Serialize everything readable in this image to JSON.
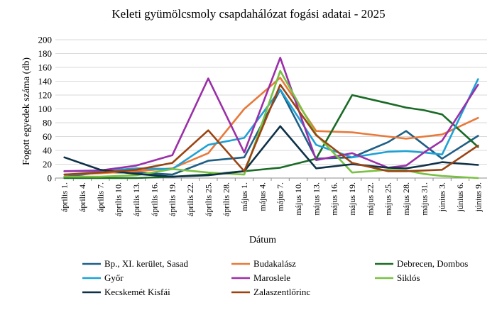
{
  "chart_data": {
    "type": "line",
    "title": "Keleti gyümölcsmoly csapdahálózat fogási adatai - 2025",
    "xlabel": "Dátum",
    "ylabel": "Fogott egyedek száma (db)",
    "ylim": [
      0,
      200
    ],
    "yticks": [
      0,
      20,
      40,
      60,
      80,
      100,
      120,
      140,
      160,
      180,
      200
    ],
    "grid": "horizontal",
    "legend_position": "bottom",
    "categories": [
      "április 1.",
      "április 4.",
      "április 7.",
      "április 10.",
      "április 13.",
      "április 16.",
      "április 19.",
      "április 22.",
      "április 25.",
      "április 28.",
      "május 1.",
      "május 4.",
      "május 7.",
      "május 10.",
      "május 13.",
      "május 16.",
      "május 19.",
      "május 22.",
      "május 25.",
      "május 28.",
      "május 31.",
      "június 3.",
      "június 6.",
      "június 9."
    ],
    "series": [
      {
        "name": "Bp., XI. kerület, Sasad",
        "color": "#1f5f85",
        "x": [
          0,
          2,
          4,
          6,
          8,
          10,
          12,
          14,
          16,
          18,
          19,
          20,
          21,
          23
        ],
        "values": [
          2,
          8,
          8,
          5,
          25,
          30,
          128,
          28,
          30,
          52,
          68,
          48,
          28,
          61
        ]
      },
      {
        "name": "Budakalász",
        "color": "#e8793a",
        "x": [
          0,
          2,
          4,
          6,
          8,
          10,
          12,
          14,
          16,
          18,
          19,
          20,
          21,
          23
        ],
        "values": [
          5,
          7,
          10,
          14,
          36,
          100,
          145,
          68,
          66,
          60,
          57,
          60,
          63,
          87
        ]
      },
      {
        "name": "Debrecen, Dombos",
        "color": "#1a6b26",
        "x": [
          0,
          2,
          4,
          6,
          8,
          10,
          12,
          14,
          16,
          18,
          19,
          20,
          21,
          23
        ],
        "values": [
          0,
          0,
          0,
          2,
          5,
          10,
          15,
          28,
          120,
          108,
          102,
          98,
          92,
          45
        ]
      },
      {
        "name": "Győr",
        "color": "#1da1d6",
        "x": [
          0,
          2,
          4,
          6,
          8,
          10,
          12,
          14,
          16,
          18,
          19,
          20,
          21,
          23
        ],
        "values": [
          10,
          10,
          14,
          13,
          48,
          58,
          128,
          48,
          30,
          38,
          39,
          37,
          34,
          143
        ]
      },
      {
        "name": "Maroslele",
        "color": "#9b2fa8",
        "x": [
          0,
          2,
          4,
          6,
          8,
          10,
          12,
          14,
          16,
          18,
          19,
          20,
          21,
          23
        ],
        "values": [
          10,
          11,
          18,
          33,
          144,
          37,
          174,
          26,
          36,
          15,
          18,
          37,
          54,
          135
        ]
      },
      {
        "name": "Siklós",
        "color": "#7ac143",
        "x": [
          0,
          2,
          4,
          6,
          8,
          10,
          12,
          14,
          16,
          18,
          19,
          20,
          21,
          23
        ],
        "values": [
          2,
          2,
          4,
          13,
          8,
          5,
          155,
          63,
          8,
          12,
          11,
          6,
          3,
          0
        ]
      },
      {
        "name": "Kecskemét Kisfái",
        "color": "#0e3147",
        "x": [
          0,
          2,
          4,
          6,
          8,
          10,
          12,
          14,
          16,
          18,
          19,
          20,
          21,
          23
        ],
        "values": [
          30,
          12,
          6,
          2,
          4,
          10,
          75,
          14,
          20,
          15,
          14,
          18,
          23,
          19
        ]
      },
      {
        "name": "Zalaszentlőrinc",
        "color": "#9a4412",
        "x": [
          0,
          2,
          4,
          6,
          8,
          10,
          12,
          14,
          16,
          18,
          19,
          20,
          21,
          23
        ],
        "values": [
          5,
          8,
          12,
          22,
          69,
          10,
          135,
          62,
          22,
          10,
          10,
          11,
          12,
          47
        ]
      }
    ]
  }
}
